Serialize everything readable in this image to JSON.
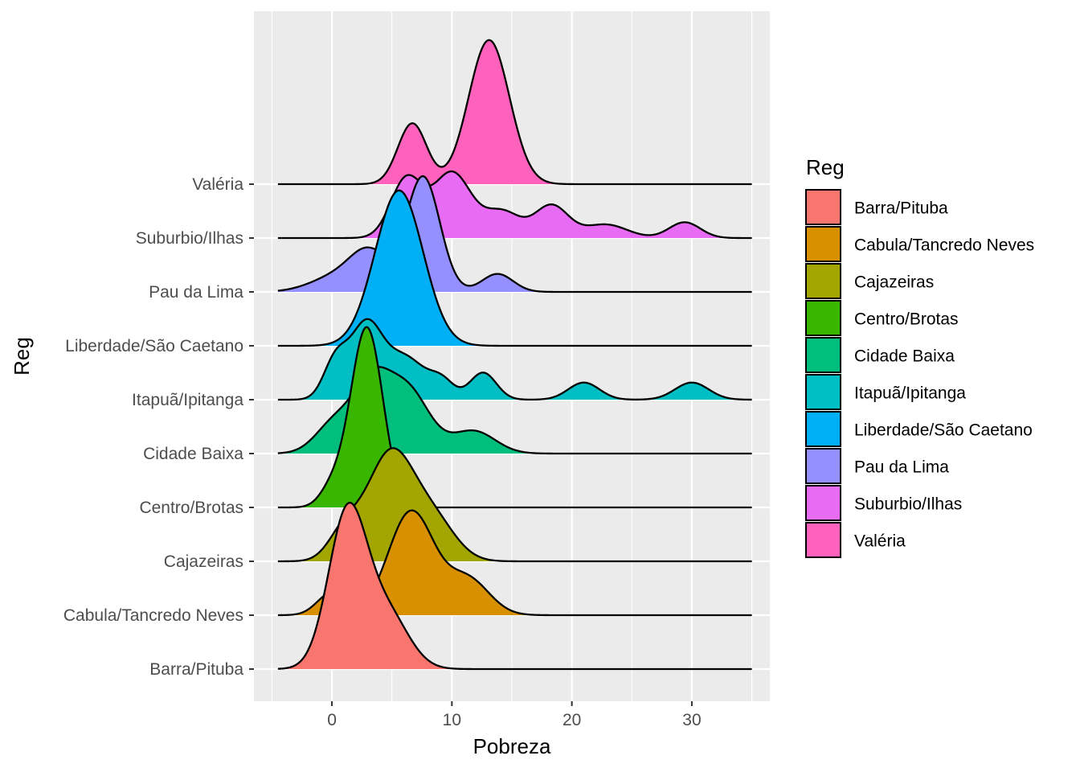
{
  "chart_data": {
    "type": "ridgeline",
    "xlabel": "Pobreza",
    "ylabel": "Reg",
    "xlim": [
      -6.5,
      36.5
    ],
    "x_ticks": [
      0,
      10,
      20,
      30
    ],
    "x_tick_labels": [
      "0",
      "10",
      "20",
      "30"
    ],
    "legend_title": "Reg",
    "legend_position": "right",
    "categories": [
      "Barra/Pituba",
      "Cabula/Tancredo Neves",
      "Cajazeiras",
      "Centro/Brotas",
      "Cidade Baixa",
      "Itapuã/Ipitanga",
      "Liberdade/São Caetano",
      "Pau da Lima",
      "Suburbio/Ilhas",
      "Valéria"
    ],
    "colors": [
      "#F8766D",
      "#D89000",
      "#A3A500",
      "#39B600",
      "#00BF7D",
      "#00BFC4",
      "#00B0F6",
      "#9590FF",
      "#E76BF3",
      "#FF62BC"
    ],
    "ridge_range": [
      -4.5,
      35
    ],
    "density_scale_note": "peak heights relative to the spacing between baselines",
    "series": [
      {
        "name": "Barra/Pituba",
        "components": [
          [
            1.3,
            1.6,
            3.45
          ],
          [
            4.6,
            1.8,
            1.2
          ]
        ]
      },
      {
        "name": "Cabula/Tancredo Neves",
        "components": [
          [
            0.0,
            1.2,
            0.5
          ],
          [
            6.6,
            1.9,
            2.3
          ],
          [
            11.3,
            1.8,
            0.8
          ]
        ]
      },
      {
        "name": "Cajazeiras",
        "components": [
          [
            1.0,
            1.3,
            0.6
          ],
          [
            4.9,
            2.0,
            2.4
          ],
          [
            8.6,
            1.8,
            0.8
          ]
        ]
      },
      {
        "name": "Centro/Brotas",
        "components": [
          [
            2.9,
            1.35,
            4.0
          ],
          [
            0.0,
            1.0,
            0.4
          ]
        ]
      },
      {
        "name": "Cidade Baixa",
        "components": [
          [
            0.3,
            1.6,
            0.7
          ],
          [
            3.3,
            1.5,
            1.4
          ],
          [
            6.3,
            1.8,
            1.4
          ],
          [
            11.8,
            1.8,
            0.5
          ]
        ]
      },
      {
        "name": "Itapuã/Ipitanga",
        "components": [
          [
            0.3,
            1.0,
            0.85
          ],
          [
            2.8,
            1.3,
            1.55
          ],
          [
            6.0,
            1.8,
            0.95
          ],
          [
            9.2,
            1.0,
            0.35
          ],
          [
            12.6,
            1.1,
            0.6
          ],
          [
            21.0,
            1.3,
            0.38
          ],
          [
            30.0,
            1.4,
            0.38
          ]
        ]
      },
      {
        "name": "Liberdade/São Caetano",
        "components": [
          [
            5.6,
            2.0,
            3.45
          ]
        ]
      },
      {
        "name": "Pau da Lima",
        "components": [
          [
            0.5,
            2.2,
            0.35
          ],
          [
            3.2,
            1.6,
            0.8
          ],
          [
            7.6,
            1.4,
            2.55
          ],
          [
            13.8,
            1.3,
            0.4
          ]
        ]
      },
      {
        "name": "Suburbio/Ilhas",
        "components": [
          [
            6.2,
            1.3,
            1.3
          ],
          [
            10.0,
            1.6,
            1.45
          ],
          [
            14.2,
            1.5,
            0.58
          ],
          [
            18.3,
            1.4,
            0.72
          ],
          [
            22.8,
            1.8,
            0.3
          ],
          [
            29.4,
            1.3,
            0.35
          ]
        ]
      },
      {
        "name": "Valéria",
        "components": [
          [
            6.7,
            1.2,
            1.35
          ],
          [
            13.1,
            1.7,
            3.2
          ]
        ]
      }
    ]
  }
}
